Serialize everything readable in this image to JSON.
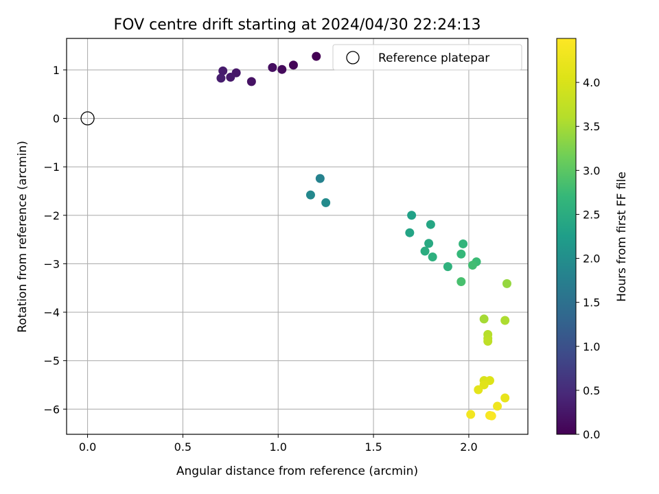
{
  "chart_data": {
    "type": "scatter",
    "title": "FOV centre drift starting at 2024/04/30 22:24:13",
    "xlabel": "Angular distance from reference (arcmin)",
    "ylabel": "Rotation from reference (arcmin)",
    "xlim": [
      -0.11,
      2.31
    ],
    "ylim": [
      -6.52,
      1.65
    ],
    "xticks": [
      0.0,
      0.5,
      1.0,
      1.5,
      2.0
    ],
    "xtick_labels": [
      "0.0",
      "0.5",
      "1.0",
      "1.5",
      "2.0"
    ],
    "yticks": [
      -6,
      -5,
      -4,
      -3,
      -2,
      -1,
      0,
      1
    ],
    "ytick_labels": [
      "−6",
      "−5",
      "−4",
      "−3",
      "−2",
      "−1",
      "0",
      "1"
    ],
    "grid": true,
    "legend": {
      "placement": "upper right",
      "entries": [
        {
          "label": "Reference platepar",
          "marker": "open-circle"
        }
      ]
    },
    "reference_point": {
      "x": 0.0,
      "y": 0.0
    },
    "colorbar": {
      "label": "Hours from first FF file",
      "colormap": "viridis",
      "range": [
        0.0,
        4.5
      ],
      "ticks": [
        0.0,
        0.5,
        1.0,
        1.5,
        2.0,
        2.5,
        3.0,
        3.5,
        4.0
      ],
      "tick_labels": [
        "0.0",
        "0.5",
        "1.0",
        "1.5",
        "2.0",
        "2.5",
        "3.0",
        "3.5",
        "4.0"
      ]
    },
    "points": [
      {
        "x": 1.2,
        "y": 1.28,
        "c": 0.0
      },
      {
        "x": 1.08,
        "y": 1.1,
        "c": 0.05
      },
      {
        "x": 1.02,
        "y": 1.01,
        "c": 0.1
      },
      {
        "x": 0.97,
        "y": 1.05,
        "c": 0.15
      },
      {
        "x": 0.86,
        "y": 0.76,
        "c": 0.2
      },
      {
        "x": 0.78,
        "y": 0.94,
        "c": 0.25
      },
      {
        "x": 0.75,
        "y": 0.85,
        "c": 0.28
      },
      {
        "x": 0.71,
        "y": 0.98,
        "c": 0.3
      },
      {
        "x": 0.7,
        "y": 0.83,
        "c": 0.33
      },
      {
        "x": 1.22,
        "y": -1.24,
        "c": 1.8
      },
      {
        "x": 1.17,
        "y": -1.58,
        "c": 1.9
      },
      {
        "x": 1.25,
        "y": -1.74,
        "c": 1.95
      },
      {
        "x": 1.7,
        "y": -2.0,
        "c": 2.3
      },
      {
        "x": 1.69,
        "y": -2.36,
        "c": 2.35
      },
      {
        "x": 1.8,
        "y": -2.19,
        "c": 2.4
      },
      {
        "x": 1.79,
        "y": -2.58,
        "c": 2.45
      },
      {
        "x": 1.77,
        "y": -2.74,
        "c": 2.5
      },
      {
        "x": 1.81,
        "y": -2.86,
        "c": 2.55
      },
      {
        "x": 1.89,
        "y": -3.06,
        "c": 2.6
      },
      {
        "x": 1.97,
        "y": -2.59,
        "c": 2.65
      },
      {
        "x": 1.96,
        "y": -2.8,
        "c": 2.7
      },
      {
        "x": 2.04,
        "y": -2.96,
        "c": 2.75
      },
      {
        "x": 2.02,
        "y": -3.03,
        "c": 2.8
      },
      {
        "x": 1.96,
        "y": -3.37,
        "c": 2.85
      },
      {
        "x": 2.2,
        "y": -3.41,
        "c": 3.4
      },
      {
        "x": 2.08,
        "y": -4.14,
        "c": 3.5
      },
      {
        "x": 2.19,
        "y": -4.17,
        "c": 3.55
      },
      {
        "x": 2.1,
        "y": -4.46,
        "c": 3.6
      },
      {
        "x": 2.1,
        "y": -4.54,
        "c": 3.65
      },
      {
        "x": 2.1,
        "y": -4.6,
        "c": 3.7
      },
      {
        "x": 2.08,
        "y": -5.41,
        "c": 4.0
      },
      {
        "x": 2.11,
        "y": -5.41,
        "c": 4.05
      },
      {
        "x": 2.08,
        "y": -5.5,
        "c": 4.1
      },
      {
        "x": 2.05,
        "y": -5.6,
        "c": 4.15
      },
      {
        "x": 2.19,
        "y": -5.77,
        "c": 4.2
      },
      {
        "x": 2.15,
        "y": -5.94,
        "c": 4.3
      },
      {
        "x": 2.01,
        "y": -6.11,
        "c": 4.35
      },
      {
        "x": 2.11,
        "y": -6.13,
        "c": 4.4
      },
      {
        "x": 2.12,
        "y": -6.14,
        "c": 4.45
      }
    ]
  }
}
